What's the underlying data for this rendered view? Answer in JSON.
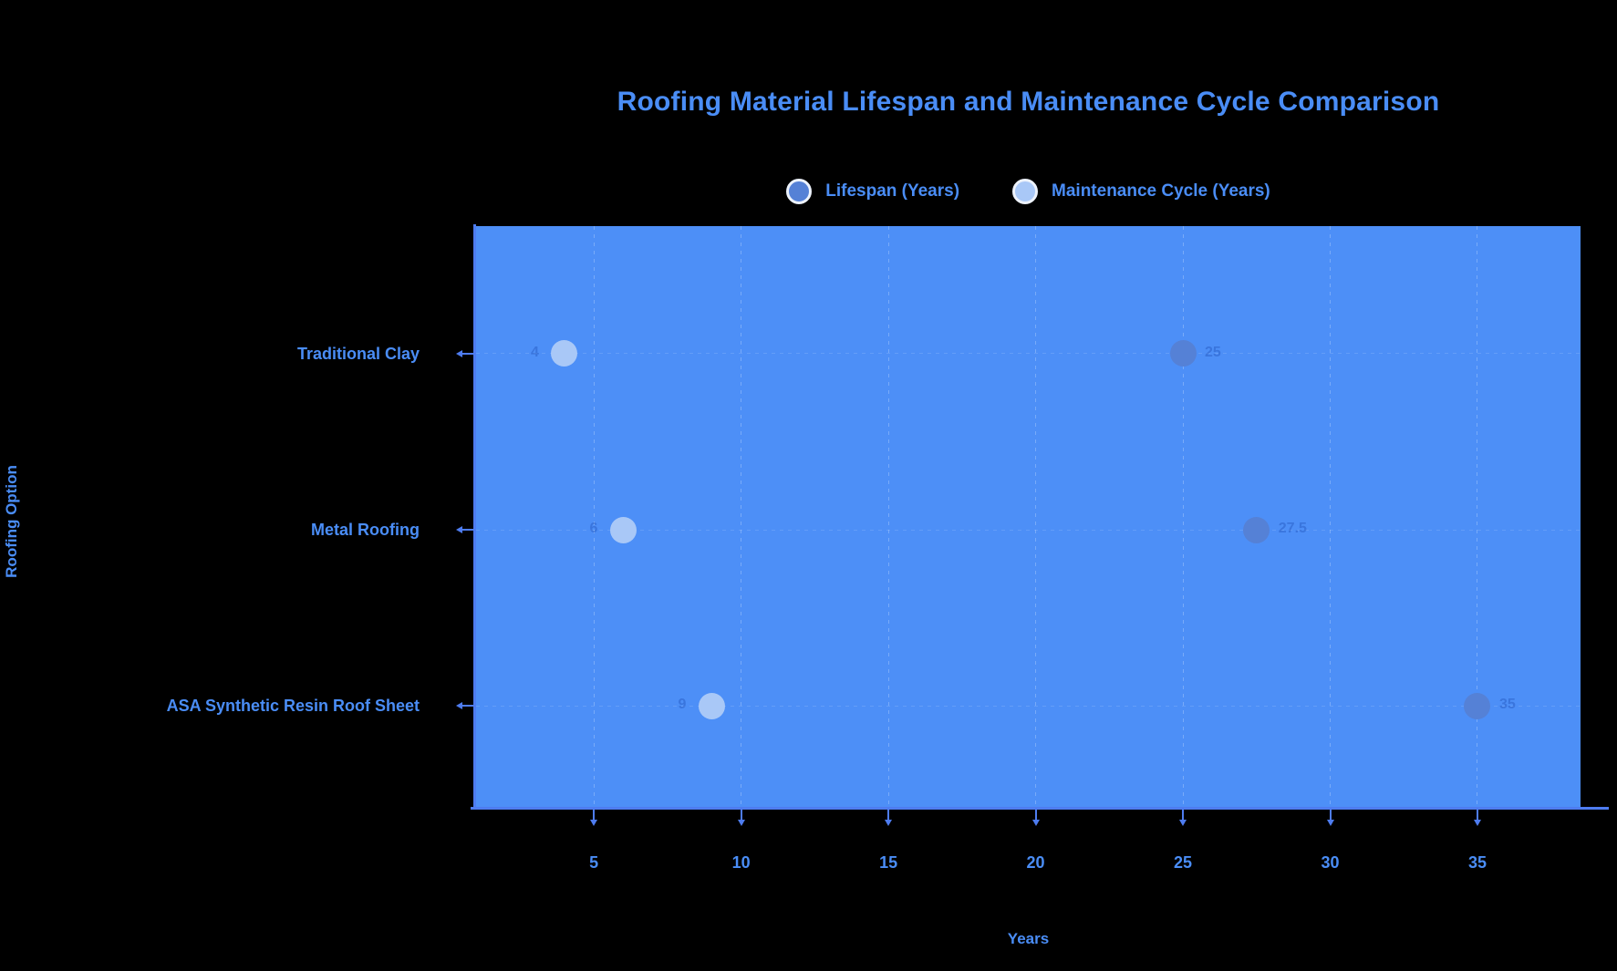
{
  "title": "Roofing Material Lifespan and Maintenance Cycle Comparison",
  "legend": [
    {
      "label": "Lifespan (Years)",
      "color": "#5581d6"
    },
    {
      "label": "Maintenance Cycle (Years)",
      "color": "#a9c8f7"
    }
  ],
  "colors": {
    "background": "#000000",
    "accent": "#4a8df6",
    "axis": "#4e7cf0",
    "plot_background": "#4d8ff7",
    "lifespan_dot": "#5581d6",
    "maintenance_dot": "#a9c8f7"
  },
  "chart_data": {
    "type": "scatter",
    "orientation": "horizontal-category",
    "title": "Roofing Material Lifespan and Maintenance Cycle Comparison",
    "categories": [
      "Traditional Clay",
      "Metal Roofing",
      "ASA Synthetic Resin Roof Sheet"
    ],
    "series": [
      {
        "name": "Lifespan (Years)",
        "color": "#5581d6",
        "values": [
          25,
          27.5,
          35
        ],
        "label_side": "right"
      },
      {
        "name": "Maintenance Cycle (Years)",
        "color": "#a9c8f7",
        "values": [
          4,
          6,
          9
        ],
        "label_side": "left"
      }
    ],
    "xlabel": "Years",
    "ylabel": "Roofing Option",
    "x_ticks": [
      5,
      10,
      15,
      20,
      25,
      30,
      35
    ],
    "xlim": [
      1,
      38.5
    ],
    "grid": true,
    "legend_position": "top",
    "value_labels": "faint"
  }
}
